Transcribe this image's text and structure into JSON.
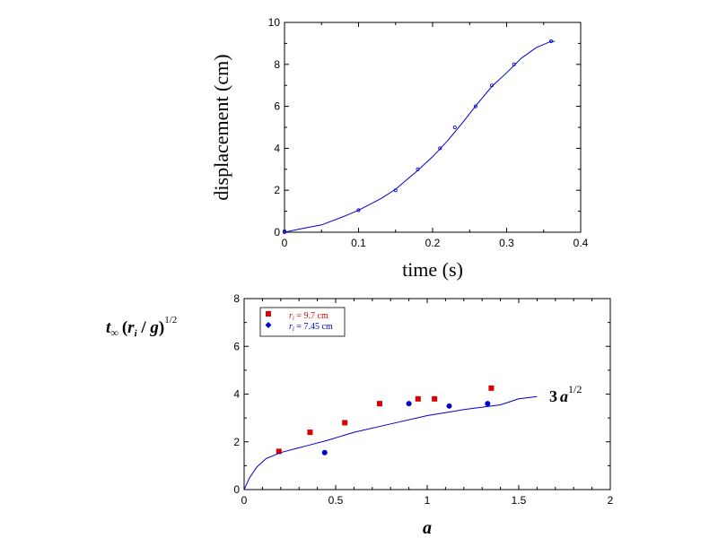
{
  "chart_data": [
    {
      "type": "scatter",
      "xlabel": "time (s)",
      "ylabel": "displacement (cm)",
      "xlim": [
        0,
        0.4
      ],
      "ylim": [
        0,
        10
      ],
      "xticks": [
        "0",
        "0.1",
        "0.2",
        "0.3",
        "0.4"
      ],
      "yticks": [
        "0",
        "2",
        "4",
        "6",
        "8",
        "10"
      ],
      "grid": false,
      "series": [
        {
          "kind": "points",
          "color": "#0000cc",
          "x": [
            0.0,
            0.0,
            0.1,
            0.15,
            0.18,
            0.21,
            0.23,
            0.258,
            0.28,
            0.31,
            0.36
          ],
          "y": [
            0.0,
            0.05,
            1.05,
            2.0,
            3.0,
            4.0,
            5.0,
            6.0,
            7.0,
            8.0,
            9.1
          ]
        },
        {
          "kind": "line",
          "color": "#0000cc",
          "x": [
            0.0,
            0.02,
            0.05,
            0.08,
            0.1,
            0.13,
            0.15,
            0.18,
            0.2,
            0.22,
            0.24,
            0.26,
            0.28,
            0.3,
            0.32,
            0.34,
            0.36,
            0.365
          ],
          "y": [
            0.0,
            0.15,
            0.35,
            0.75,
            1.05,
            1.6,
            2.05,
            2.95,
            3.6,
            4.35,
            5.2,
            6.1,
            6.95,
            7.6,
            8.3,
            8.8,
            9.1,
            9.1
          ]
        }
      ]
    },
    {
      "type": "scatter",
      "xlabel": "a",
      "ylabel": {
        "t": "t",
        "sub": "∞",
        "mid": "(",
        "r": "r",
        "rsub": "i",
        "sep": " / ",
        "g": "g",
        "close": ")",
        "exp": "1/2"
      },
      "xlim": [
        0,
        2
      ],
      "ylim": [
        0,
        8
      ],
      "xticks": [
        "0",
        "0.5",
        "1",
        "1.5",
        "2"
      ],
      "yticks": [
        "0",
        "2",
        "4",
        "6",
        "8"
      ],
      "grid": false,
      "annotation": {
        "coef": "3",
        "var": "a",
        "exp": "1/2"
      },
      "legend": {
        "placement": "top-left",
        "entries": [
          {
            "r": "r",
            "sub": "i",
            "text": " = 9.7 cm",
            "color": "#dd0000",
            "marker": "square"
          },
          {
            "r": "r",
            "sub": "i",
            "text": " = 7.45 cm",
            "color": "#0000cc",
            "marker": "diamond"
          }
        ]
      },
      "series": [
        {
          "kind": "points",
          "marker": "square",
          "color": "#dd0000",
          "x": [
            0.19,
            0.36,
            0.55,
            0.74,
            0.95,
            1.04,
            1.35
          ],
          "y": [
            1.6,
            2.4,
            2.8,
            3.6,
            3.8,
            3.8,
            4.25
          ]
        },
        {
          "kind": "points",
          "marker": "circle",
          "color": "#0000cc",
          "x": [
            0.44,
            0.9,
            1.12,
            1.33
          ],
          "y": [
            1.55,
            3.6,
            3.5,
            3.6
          ]
        },
        {
          "kind": "line",
          "color": "#0000cc",
          "x": [
            0.0,
            0.03,
            0.07,
            0.12,
            0.2,
            0.3,
            0.35,
            0.45,
            0.6,
            0.8,
            1.0,
            1.2,
            1.4,
            1.5,
            1.6
          ],
          "y": [
            0.0,
            0.5,
            0.95,
            1.3,
            1.55,
            1.75,
            1.85,
            2.05,
            2.4,
            2.75,
            3.1,
            3.35,
            3.55,
            3.8,
            3.9
          ]
        }
      ]
    }
  ]
}
